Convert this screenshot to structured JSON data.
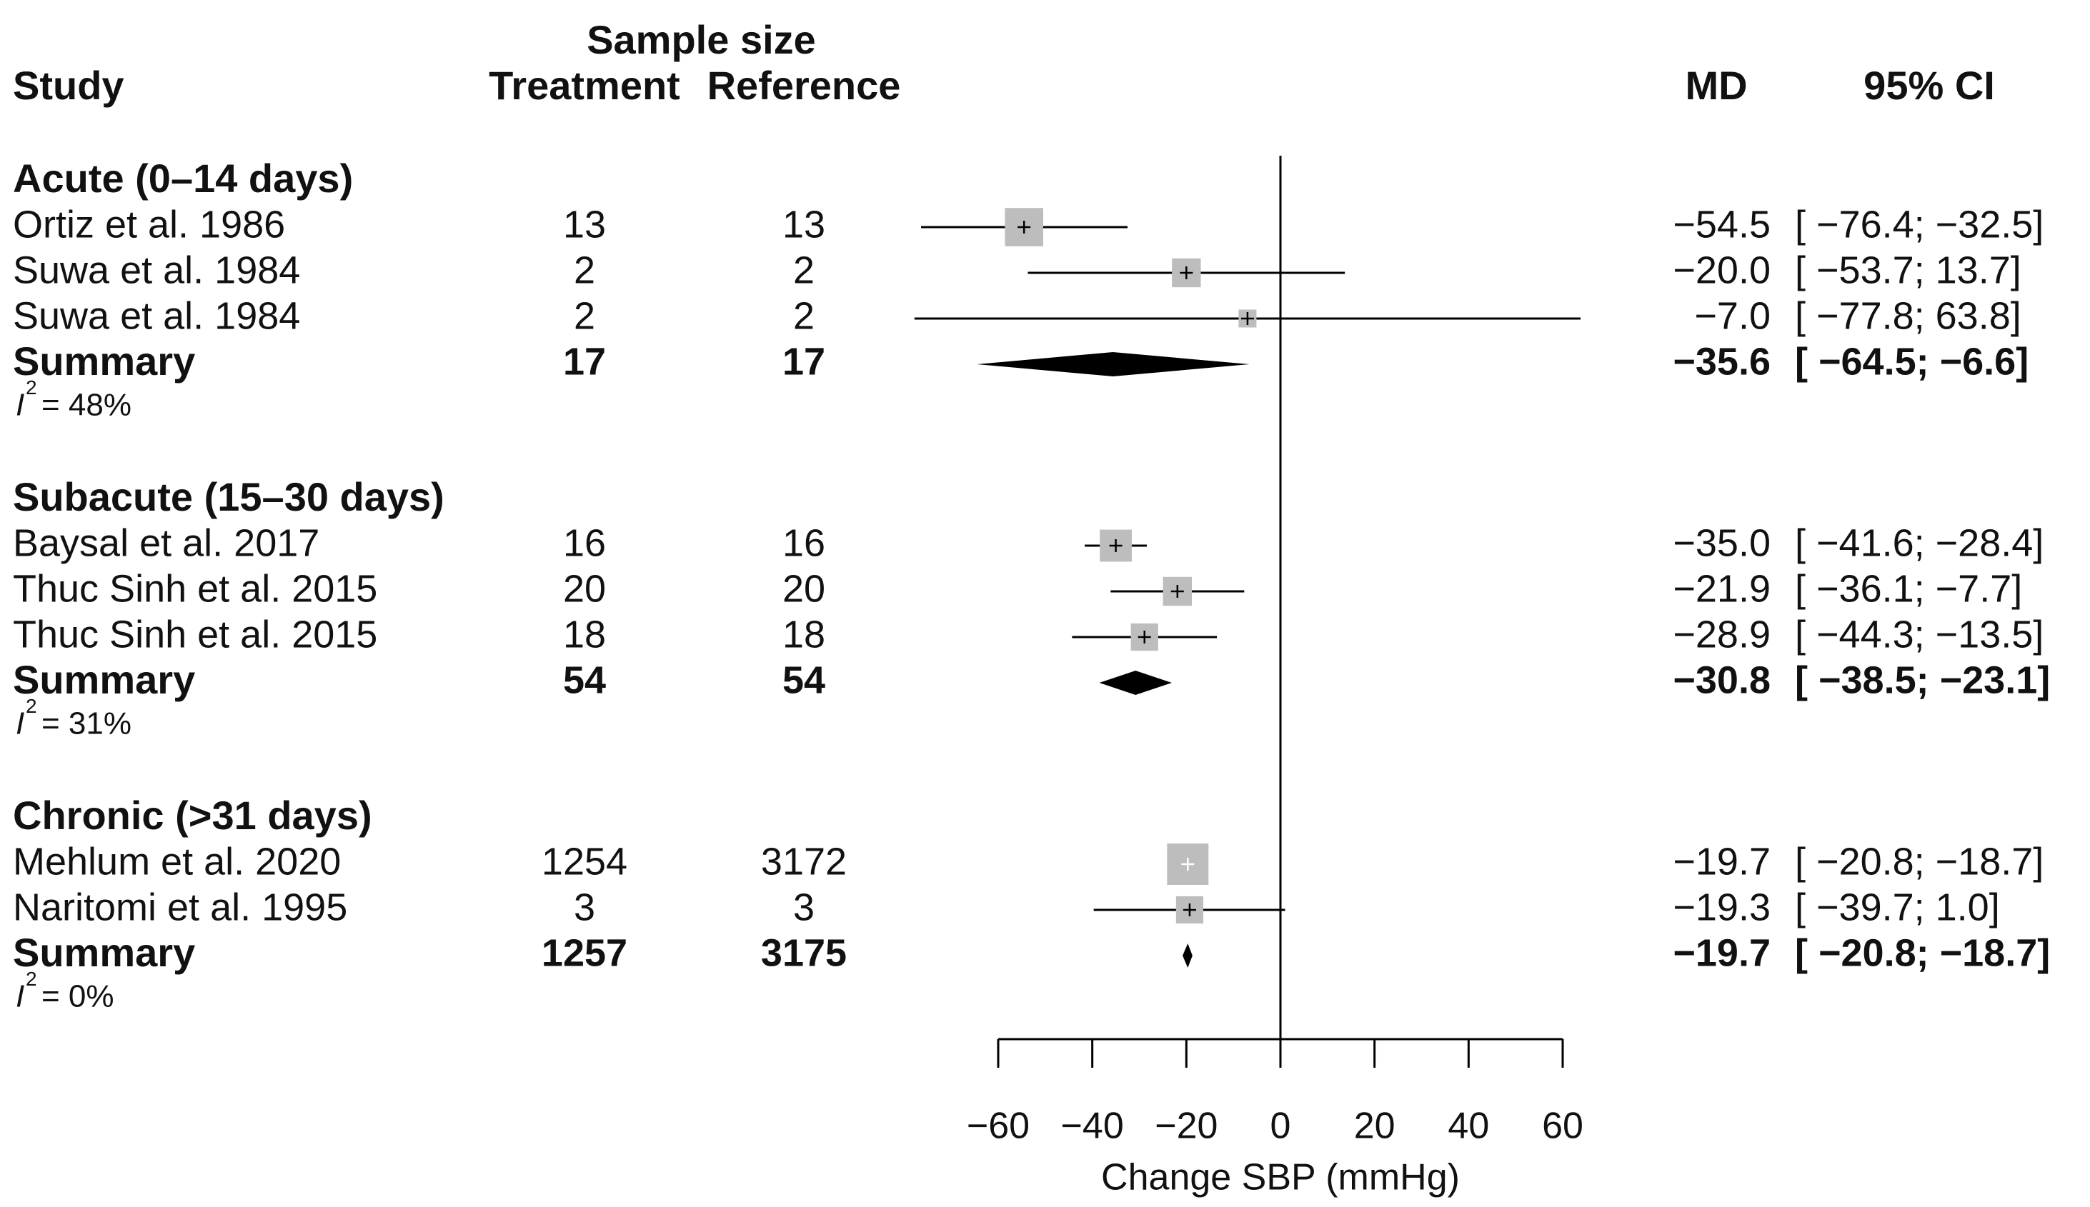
{
  "chart_data": {
    "type": "forest",
    "headers": {
      "study": "Study",
      "sample_size": "Sample size",
      "treatment": "Treatment",
      "reference": "Reference",
      "md": "MD",
      "ci": "95% CI"
    },
    "colors": {
      "box": "#bdbdbd",
      "line": "#000000",
      "diamond": "#000000",
      "text": "#111111"
    },
    "groups": [
      {
        "name": "Acute (0–14 days)",
        "heterogeneity": "= 48%",
        "studies": [
          {
            "study": "Ortiz et al. 1986",
            "treatment": "13",
            "reference": "13",
            "md": -54.5,
            "lo": -76.4,
            "hi": -32.5,
            "md_text": "−54.5",
            "ci_text": "[ −76.4; −32.5]",
            "weight": 0.9
          },
          {
            "study": "Suwa et al. 1984",
            "treatment": "2",
            "reference": "2",
            "md": -20.0,
            "lo": -53.7,
            "hi": 13.7,
            "md_text": "−20.0",
            "ci_text": "[ −53.7;  13.7]",
            "weight": 0.6
          },
          {
            "study": "Suwa et al. 1984",
            "treatment": "2",
            "reference": "2",
            "md": -7.0,
            "lo": -77.8,
            "hi": 63.8,
            "md_text": "−7.0",
            "ci_text": "[ −77.8;  63.8]",
            "weight": 0.25
          }
        ],
        "summary": {
          "label": "Summary",
          "treatment": "17",
          "reference": "17",
          "md": -35.6,
          "lo": -64.5,
          "hi": -6.6,
          "md_text": "−35.6",
          "ci_text": "[ −64.5;  −6.6]"
        }
      },
      {
        "name": "Subacute (15–30 days)",
        "heterogeneity": "= 31%",
        "studies": [
          {
            "study": "Baysal et al. 2017",
            "treatment": "16",
            "reference": "16",
            "md": -35.0,
            "lo": -41.6,
            "hi": -28.4,
            "md_text": "−35.0",
            "ci_text": "[ −41.6; −28.4]",
            "weight": 0.7
          },
          {
            "study": "Thuc Sinh et al. 2015",
            "treatment": "20",
            "reference": "20",
            "md": -21.9,
            "lo": -36.1,
            "hi": -7.7,
            "md_text": "−21.9",
            "ci_text": "[ −36.1;  −7.7]",
            "weight": 0.6
          },
          {
            "study": "Thuc Sinh et al. 2015",
            "treatment": "18",
            "reference": "18",
            "md": -28.9,
            "lo": -44.3,
            "hi": -13.5,
            "md_text": "−28.9",
            "ci_text": "[ −44.3; −13.5]",
            "weight": 0.55
          }
        ],
        "summary": {
          "label": "Summary",
          "treatment": "54",
          "reference": "54",
          "md": -30.8,
          "lo": -38.5,
          "hi": -23.1,
          "md_text": "−30.8",
          "ci_text": "[ −38.5; −23.1]"
        }
      },
      {
        "name": "Chronic (>31 days)",
        "heterogeneity": "= 0%",
        "studies": [
          {
            "study": "Mehlum et al. 2020",
            "treatment": "1254",
            "reference": "3172",
            "md": -19.7,
            "lo": -20.8,
            "hi": -18.7,
            "md_text": "−19.7",
            "ci_text": "[ −20.8; −18.7]",
            "weight": 1.0
          },
          {
            "study": "Naritomi et al. 1995",
            "treatment": "3",
            "reference": "3",
            "md": -19.3,
            "lo": -39.7,
            "hi": 1.0,
            "md_text": "−19.3",
            "ci_text": "[ −39.7;   1.0]",
            "weight": 0.55
          }
        ],
        "summary": {
          "label": "Summary",
          "treatment": "1257",
          "reference": "3175",
          "md": -19.7,
          "lo": -20.8,
          "hi": -18.7,
          "md_text": "−19.7",
          "ci_text": "[ −20.8; −18.7]"
        }
      }
    ],
    "x_axis": {
      "label": "Change SBP (mmHg)",
      "ticks": [
        -60,
        -40,
        -20,
        0,
        20,
        40,
        60
      ],
      "tick_labels": [
        "−60",
        "−40",
        "−20",
        "0",
        "20",
        "40",
        "60"
      ],
      "range": [
        -60,
        60
      ],
      "reference_line": 0
    }
  }
}
